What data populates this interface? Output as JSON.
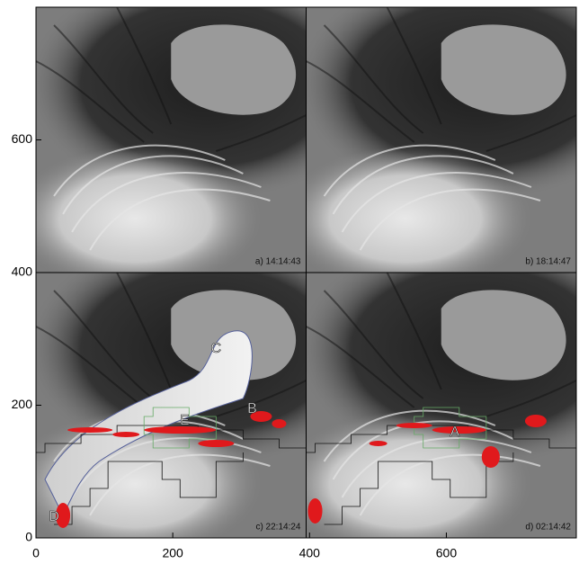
{
  "figure": {
    "panels": [
      {
        "label": "a) 14:14:43"
      },
      {
        "label": "b) 18:14:47"
      },
      {
        "label": "c) 22:14:24",
        "annotations": [
          "C",
          "B",
          "E",
          "D"
        ]
      },
      {
        "label": "d) 02:14:42",
        "annotations": [
          "A"
        ]
      }
    ],
    "xlim": [
      0,
      790
    ],
    "ylim": [
      0,
      800
    ],
    "xticks": [
      0,
      200,
      400,
      600
    ],
    "yticks": [
      0,
      200,
      400,
      600
    ]
  }
}
